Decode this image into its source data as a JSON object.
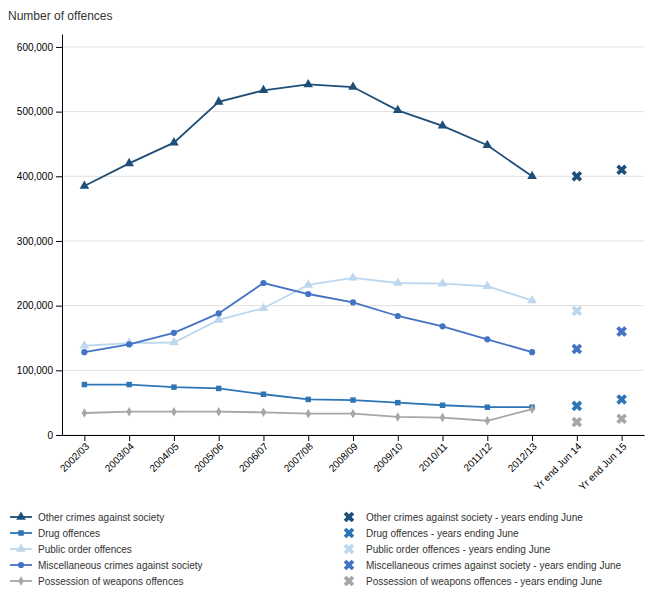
{
  "chart_data": {
    "type": "line",
    "ylabel": "Number of offences",
    "categories": [
      "2002/03",
      "2003/04",
      "2004/05",
      "2005/06",
      "2006/07",
      "2007/08",
      "2008/09",
      "2009/10",
      "2010/11",
      "2011/12",
      "2012/13",
      "Yr end Jun 14",
      "Yr end Jun 15"
    ],
    "series": [
      {
        "name": "Other crimes against society",
        "type": "line",
        "marker": "triangle",
        "color": "#1f4e79",
        "values": [
          385000,
          420000,
          452000,
          515000,
          533000,
          542000,
          538000,
          502000,
          478000,
          448000,
          400000,
          null,
          null
        ]
      },
      {
        "name": "Other crimes against society - years ending June",
        "type": "scatter",
        "marker": "x",
        "color": "#1f4e79",
        "values": [
          null,
          null,
          null,
          null,
          null,
          null,
          null,
          null,
          null,
          null,
          null,
          400000,
          410000
        ]
      },
      {
        "name": "Drug offences",
        "type": "line",
        "marker": "square",
        "color": "#2e75b6",
        "values": [
          78000,
          78000,
          74000,
          72000,
          63000,
          55000,
          54000,
          50000,
          46000,
          43000,
          43000,
          null,
          null
        ]
      },
      {
        "name": "Drug offences - years ending June",
        "type": "scatter",
        "marker": "x",
        "color": "#2e75b6",
        "values": [
          null,
          null,
          null,
          null,
          null,
          null,
          null,
          null,
          null,
          null,
          null,
          45000,
          55000
        ]
      },
      {
        "name": "Public order offences",
        "type": "line",
        "marker": "triangle",
        "color": "#bdd7ee",
        "values": [
          138000,
          142000,
          143000,
          178000,
          196000,
          232000,
          243000,
          235000,
          234000,
          230000,
          208000,
          null,
          null
        ]
      },
      {
        "name": "Public order offences - years ending June",
        "type": "scatter",
        "marker": "x",
        "color": "#bdd7ee",
        "values": [
          null,
          null,
          null,
          null,
          null,
          null,
          null,
          null,
          null,
          null,
          null,
          192000,
          160000
        ]
      },
      {
        "name": "Miscellaneous crimes against society",
        "type": "line",
        "marker": "circle",
        "color": "#4472c4",
        "values": [
          128000,
          140000,
          158000,
          188000,
          235000,
          218000,
          205000,
          184000,
          168000,
          148000,
          128000,
          null,
          null
        ]
      },
      {
        "name": "Miscellaneous crimes against society - years ending June",
        "type": "scatter",
        "marker": "x",
        "color": "#4472c4",
        "values": [
          null,
          null,
          null,
          null,
          null,
          null,
          null,
          null,
          null,
          null,
          null,
          133000,
          160000
        ]
      },
      {
        "name": "Possession of weapons offences",
        "type": "line",
        "marker": "diamond",
        "color": "#a6a6a6",
        "values": [
          34000,
          36000,
          36000,
          36000,
          35000,
          33000,
          33000,
          28000,
          27000,
          22000,
          40000,
          null,
          null
        ]
      },
      {
        "name": "Possession of weapons offences - years ending June",
        "type": "scatter",
        "marker": "x",
        "color": "#a6a6a6",
        "values": [
          null,
          null,
          null,
          null,
          null,
          null,
          null,
          null,
          null,
          null,
          null,
          20000,
          25000
        ]
      }
    ],
    "ylim": [
      0,
      620000
    ],
    "yticks": [
      0,
      {
        "value": 100000,
        "label": "100,000"
      },
      {
        "value": 200000,
        "label": "200,000"
      },
      {
        "value": 300000,
        "label": "300,000"
      },
      {
        "value": 400000,
        "label": "400,000"
      },
      {
        "value": 500000,
        "label": "500,000"
      },
      {
        "value": 600000,
        "label": "600,000"
      }
    ],
    "grid": true,
    "legend": "bottom"
  }
}
